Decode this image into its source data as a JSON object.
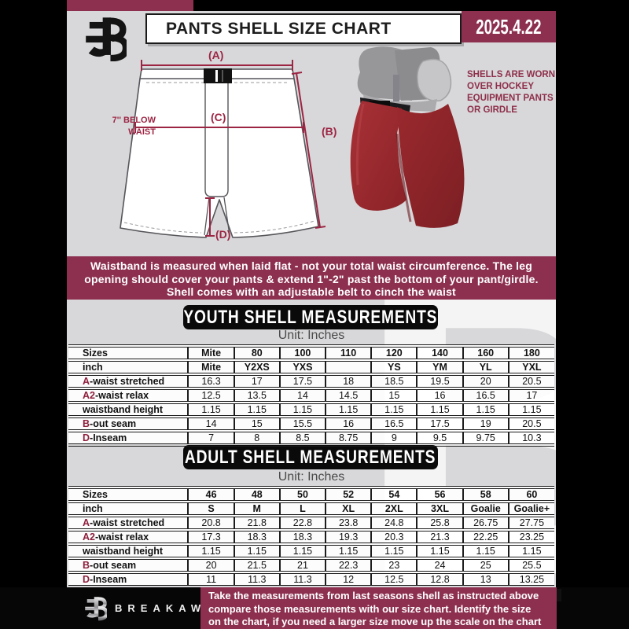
{
  "header": {
    "title": "PANTS SHELL SIZE CHART",
    "date": "2025.4.22"
  },
  "diagram": {
    "label_a": "(A)",
    "label_b": "(B)",
    "label_c": "(C)",
    "label_d": "(D)",
    "below_waist_line1": "7'' BELOW",
    "below_waist_line2": "WAIST",
    "shell_note_lines": [
      "SHELLS ARE WORN",
      "OVER HOCKEY",
      "EQUIPMENT PANTS",
      "OR GIRDLE"
    ]
  },
  "info_banner": {
    "lines": [
      "Waistband is measured when laid flat - not your total waist circumference. The leg",
      "opening should cover your pants & extend 1\"-2\" past the bottom of your pant/girdle.",
      "Shell comes with an adjustable belt to cinch the waist"
    ]
  },
  "youth": {
    "title": "YOUTH SHELL MEASUREMENTS",
    "unit": "Unit: Inches",
    "rows": [
      {
        "prefix": "",
        "label": "Sizes",
        "bold": true,
        "values": [
          "Mite",
          "80",
          "100",
          "110",
          "120",
          "140",
          "160",
          "180"
        ]
      },
      {
        "prefix": "",
        "label": "inch",
        "bold": true,
        "values": [
          "Mite",
          "Y2XS",
          "YXS",
          "",
          "YS",
          "YM",
          "YL",
          "YXL"
        ]
      },
      {
        "prefix": "A",
        "label": "-waist stretched",
        "bold": false,
        "values": [
          "16.3",
          "17",
          "17.5",
          "18",
          "18.5",
          "19.5",
          "20",
          "20.5"
        ]
      },
      {
        "prefix": "A2",
        "label": "-waist relax",
        "bold": false,
        "values": [
          "12.5",
          "13.5",
          "14",
          "14.5",
          "15",
          "16",
          "16.5",
          "17"
        ]
      },
      {
        "prefix": "",
        "label": "waistband height",
        "bold": false,
        "values": [
          "1.15",
          "1.15",
          "1.15",
          "1.15",
          "1.15",
          "1.15",
          "1.15",
          "1.15"
        ]
      },
      {
        "prefix": "B",
        "label": "-out seam",
        "bold": false,
        "values": [
          "14",
          "15",
          "15.5",
          "16",
          "16.5",
          "17.5",
          "19",
          "20.5"
        ]
      },
      {
        "prefix": "D",
        "label": "-Inseam",
        "bold": false,
        "values": [
          "7",
          "8",
          "8.5",
          "8.75",
          "9",
          "9.5",
          "9.75",
          "10.3"
        ]
      }
    ]
  },
  "adult": {
    "title": "ADULT SHELL MEASUREMENTS",
    "unit": "Unit: Inches",
    "rows": [
      {
        "prefix": "",
        "label": "Sizes",
        "bold": true,
        "values": [
          "46",
          "48",
          "50",
          "52",
          "54",
          "56",
          "58",
          "60"
        ]
      },
      {
        "prefix": "",
        "label": "inch",
        "bold": true,
        "values": [
          "S",
          "M",
          "L",
          "XL",
          "2XL",
          "3XL",
          "Goalie",
          "Goalie+"
        ]
      },
      {
        "prefix": "A",
        "label": "-waist stretched",
        "bold": false,
        "values": [
          "20.8",
          "21.8",
          "22.8",
          "23.8",
          "24.8",
          "25.8",
          "26.75",
          "27.75"
        ]
      },
      {
        "prefix": "A2",
        "label": "-waist relax",
        "bold": false,
        "values": [
          "17.3",
          "18.3",
          "18.3",
          "19.3",
          "20.3",
          "21.3",
          "22.25",
          "23.25"
        ]
      },
      {
        "prefix": "",
        "label": "waistband height",
        "bold": false,
        "values": [
          "1.15",
          "1.15",
          "1.15",
          "1.15",
          "1.15",
          "1.15",
          "1.15",
          "1.15"
        ]
      },
      {
        "prefix": "B",
        "label": "-out seam",
        "bold": false,
        "values": [
          "20",
          "21.5",
          "21",
          "22.3",
          "23",
          "24",
          "25",
          "25.5"
        ]
      },
      {
        "prefix": "D",
        "label": "-Inseam",
        "bold": false,
        "values": [
          "11",
          "11.3",
          "11.3",
          "12",
          "12.5",
          "12.8",
          "13",
          "13.25"
        ]
      }
    ]
  },
  "footer": {
    "brand": "BREAKAWAY",
    "note_lines": [
      "Take the measurements from last seasons shell as instructed above",
      "compare those measurements  with our size chart. Identify the size",
      "on the chart, if you need a larger size move up the scale on the chart"
    ]
  },
  "watermark_letter": "B",
  "colors": {
    "accent_maroon": "#8d3050",
    "diagram_line": "#9c2543",
    "prefix_maroon": "#8e1f3c",
    "sheet_gray": "#d8d8da",
    "banner_black": "#0a0a0a",
    "shell_red": "#9e292e"
  }
}
